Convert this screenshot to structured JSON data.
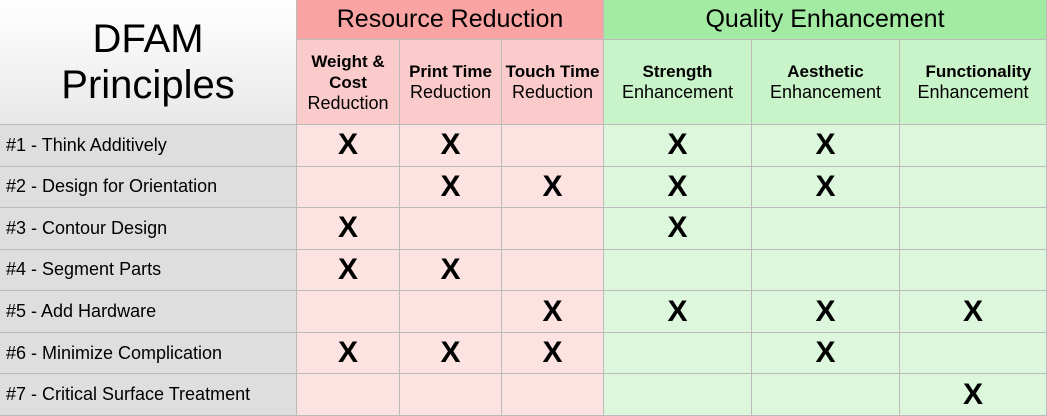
{
  "header": {
    "title_lines": [
      "DFAM",
      "Principles"
    ]
  },
  "groups": [
    {
      "label": "Resource Reduction",
      "span": 3
    },
    {
      "label": "Quality Enhancement",
      "span": 3
    }
  ],
  "columns": [
    {
      "bold": "Weight & Cost",
      "normal": "Reduction"
    },
    {
      "bold": "Print Time",
      "normal": "Reduction"
    },
    {
      "bold": "Touch Time",
      "normal": "Reduction"
    },
    {
      "bold": "Strength",
      "normal": "Enhancement"
    },
    {
      "bold": "Aesthetic",
      "normal": "Enhancement"
    },
    {
      "bold": "Functionality",
      "normal": "Enhancement"
    }
  ],
  "rows": [
    {
      "label": "#1 - Think Additively",
      "cells": [
        "X",
        "X",
        null,
        "X",
        "X",
        null
      ]
    },
    {
      "label": "#2 - Design for Orientation",
      "cells": [
        null,
        "X",
        "X",
        "X",
        "X",
        null
      ]
    },
    {
      "label": "#3 - Contour Design",
      "cells": [
        "X",
        null,
        null,
        "X",
        null,
        null
      ]
    },
    {
      "label": "#4 - Segment Parts",
      "cells": [
        "X",
        "X",
        null,
        null,
        null,
        null
      ]
    },
    {
      "label": "#5 - Add Hardware",
      "cells": [
        null,
        null,
        "X",
        "X",
        "X",
        "X"
      ]
    },
    {
      "label": "#6 - Minimize Complication",
      "cells": [
        "X",
        "X",
        "X",
        null,
        "X",
        null
      ]
    },
    {
      "label": "#7 - Critical Surface Treatment",
      "cells": [
        null,
        null,
        null,
        null,
        null,
        "X"
      ]
    }
  ]
}
